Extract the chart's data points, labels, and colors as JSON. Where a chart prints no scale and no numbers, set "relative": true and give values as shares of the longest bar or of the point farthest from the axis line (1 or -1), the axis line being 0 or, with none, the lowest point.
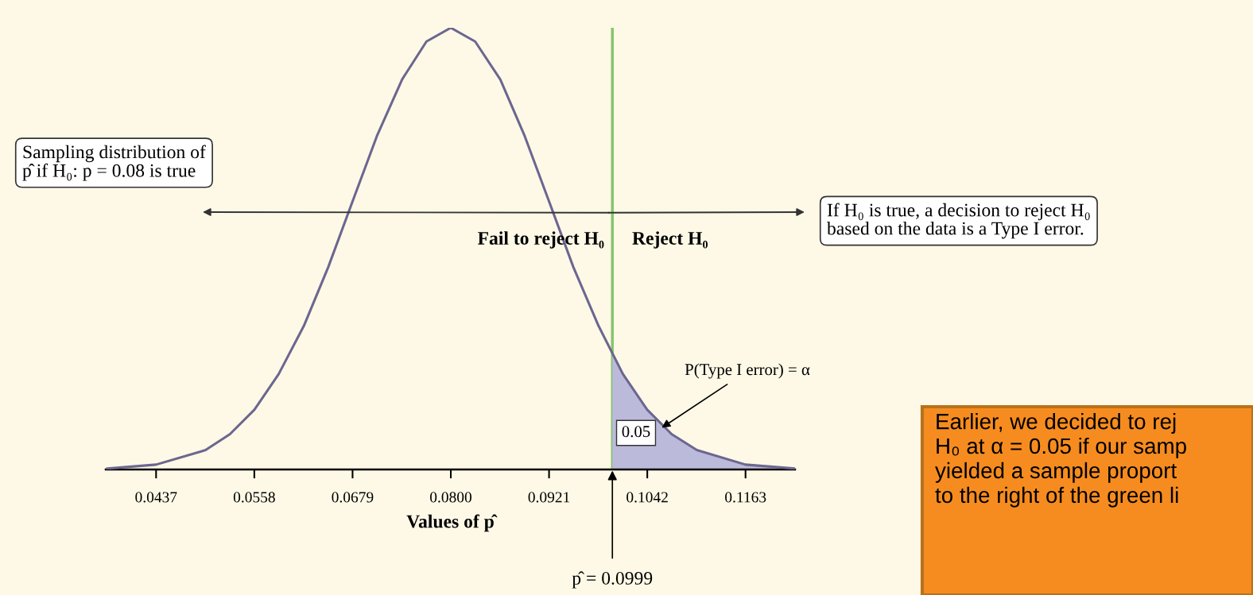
{
  "chart_data": {
    "type": "line",
    "relative": true,
    "tick_labels": "x",
    "grid": false,
    "legend": false,
    "marker": "none",
    "line_style": "solid",
    "xlabel": "Values of p̂",
    "xlim": [
      0.0375,
      0.1224
    ],
    "xticks": [
      0.0437,
      0.0558,
      0.0679,
      {
        "value": 0.08,
        "label": "0.0800"
      },
      0.0921,
      0.1042,
      0.1163
    ],
    "series": [
      {
        "type": "area",
        "color": "#bcbadb",
        "x": [
          0.0999,
          0.1012,
          0.1042,
          0.1072,
          0.1103,
          0.1163,
          0.1224
        ],
        "values": [
          0.259,
          0.216,
          0.135,
          0.08,
          0.044,
          0.011,
          0.002
        ]
      },
      {
        "color": "#6c6690",
        "x": [
          0.0377,
          0.0437,
          0.0498,
          0.0528,
          0.0558,
          0.0588,
          0.0619,
          0.0649,
          0.0679,
          0.0709,
          0.074,
          0.077,
          0.08,
          0.083,
          0.0861,
          0.0891,
          0.0921,
          0.0951,
          0.0982,
          0.1012,
          0.1042,
          0.1072,
          0.1103,
          0.1163,
          0.1224
        ],
        "values": [
          0.002,
          0.011,
          0.044,
          0.08,
          0.135,
          0.216,
          0.325,
          0.458,
          0.607,
          0.755,
          0.883,
          0.969,
          1,
          0.969,
          0.883,
          0.755,
          0.607,
          0.458,
          0.325,
          0.216,
          0.135,
          0.08,
          0.044,
          0.011,
          0.002
        ]
      }
    ],
    "ref_lines": [
      {
        "axis": "x",
        "value": 0.0999,
        "color": "#86c46f"
      }
    ],
    "annotations": [
      "Sampling distribution of\np̂ if H₀: p = 0.08 is true",
      "Fail to reject H₀",
      "Reject H₀",
      "If H₀ is true, a decision to reject H₀\nbased on the data is a Type I error.",
      "P(Type I error) = α",
      "0.05",
      {
        "text": "p̂ = 0.0999",
        "x": 0.0999,
        "y": 0
      },
      "Earlier, we decided to rej\nH₀ at α = 0.05 if our samp\nyielded a sample proport\nto the right of the green li"
    ]
  }
}
